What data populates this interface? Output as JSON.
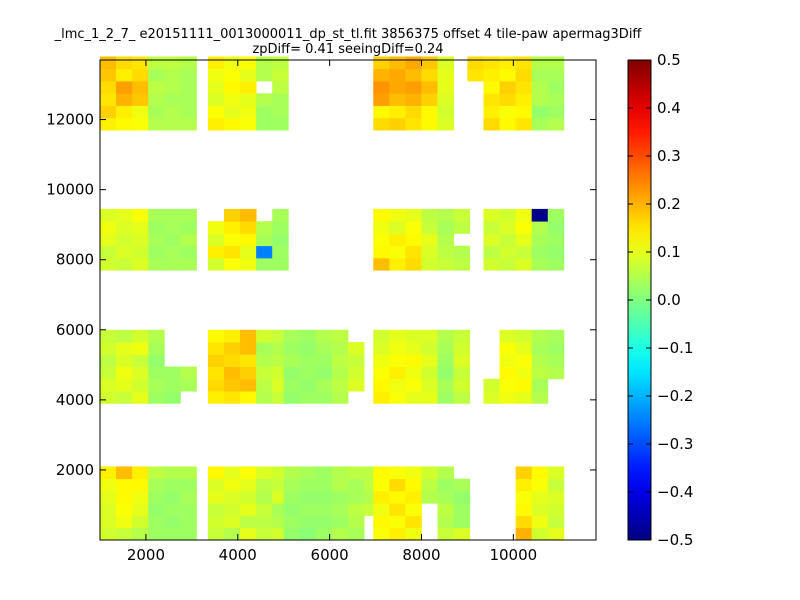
{
  "chart_data": {
    "type": "heatmap",
    "title": [
      "_lmc_1_2_7_ e20151111_0013000011_dp_st_tl.fit 3856375 offset 4 tile-paw apermag3Diff",
      "zpDiff= 0.41 seeingDiff=0.24"
    ],
    "xlim": [
      1000,
      11800
    ],
    "ylim": [
      0,
      13700
    ],
    "xticks": [
      "2000",
      "4000",
      "6000",
      "8000",
      "10000"
    ],
    "yticks": [
      "2000",
      "4000",
      "6000",
      "8000",
      "10000",
      "12000"
    ],
    "xtick_values": [
      2000,
      4000,
      6000,
      8000,
      10000
    ],
    "ytick_values": [
      2000,
      4000,
      6000,
      8000,
      10000,
      12000
    ],
    "colorbar": {
      "min": -0.5,
      "max": 0.5,
      "colormap": "jet",
      "ticks": [
        "0.5",
        "0.4",
        "0.3",
        "0.2",
        "0.1",
        "0.0",
        "−0.1",
        "−0.2",
        "−0.3",
        "−0.4",
        "−0.5"
      ],
      "tick_values": [
        0.5,
        0.4,
        0.3,
        0.2,
        0.1,
        0.0,
        -0.1,
        -0.2,
        -0.3,
        -0.4,
        -0.5
      ]
    },
    "cell_size": 350,
    "column_starts": [
      1000,
      3000,
      5000,
      6950,
      9000
    ],
    "row_bands": [
      {
        "ystart": 0,
        "rows": 6
      },
      {
        "ystart": 3900,
        "rows": 6
      },
      {
        "ystart": 7700,
        "rows": 6
      },
      {
        "ystart": 11700,
        "rows": 6
      }
    ],
    "blocks": [
      {
        "band": 0,
        "col": 0,
        "rows": [
          [
            0.08,
            0.07,
            0.05,
            0.03,
            0.03,
            0.03
          ],
          [
            0.09,
            0.11,
            0.08,
            0.03,
            0.02,
            0.03
          ],
          [
            0.09,
            0.12,
            0.1,
            0.02,
            0.03,
            0.03
          ],
          [
            0.1,
            0.13,
            0.11,
            0.03,
            0.02,
            0.04
          ],
          [
            0.11,
            0.13,
            0.13,
            0.04,
            0.03,
            0.03
          ],
          [
            0.14,
            0.19,
            0.14,
            0.06,
            0.05,
            0.05
          ]
        ]
      },
      {
        "band": 0,
        "col": 1,
        "rows": [
          [
            null,
            0.07,
            0.05,
            0.1,
            0.07,
            0.08
          ],
          [
            null,
            0.08,
            0.09,
            0.06,
            0.06,
            0.05
          ],
          [
            null,
            0.07,
            0.08,
            0.1,
            0.07,
            0.04
          ],
          [
            null,
            0.1,
            0.09,
            0.08,
            0.05,
            0.09
          ],
          [
            null,
            0.09,
            0.11,
            0.1,
            0.06,
            0.07
          ],
          [
            null,
            0.13,
            0.1,
            0.12,
            0.09,
            0.08
          ]
        ]
      },
      {
        "band": 0,
        "col": 2,
        "rows": [
          [
            0.02,
            0.01,
            0.03,
            0.05,
            0.04,
            null
          ],
          [
            0.03,
            0.02,
            0.02,
            0.03,
            0.05,
            null
          ],
          [
            0.02,
            0.03,
            0.03,
            0.04,
            0.06,
            0.07
          ],
          [
            0.03,
            0.02,
            0.02,
            0.03,
            0.04,
            0.05
          ],
          [
            0.04,
            0.03,
            0.03,
            0.05,
            0.04,
            0.06
          ],
          [
            0.05,
            0.04,
            0.03,
            0.05,
            0.06,
            0.06
          ]
        ]
      },
      {
        "band": 0,
        "col": 3,
        "rows": [
          [
            0.12,
            0.14,
            0.11,
            null,
            0.07,
            0.09
          ],
          [
            0.13,
            0.12,
            0.15,
            null,
            0.05,
            0.03
          ],
          [
            0.11,
            0.15,
            0.12,
            null,
            0.06,
            0.03
          ],
          [
            0.14,
            0.13,
            0.14,
            0.05,
            0.04,
            0.02
          ],
          [
            0.12,
            0.16,
            0.13,
            0.06,
            0.03,
            0.04
          ],
          [
            0.13,
            0.12,
            0.11,
            0.08,
            0.05,
            null
          ]
        ]
      },
      {
        "band": 0,
        "col": 4,
        "rows": [
          [
            null,
            null,
            null,
            0.2,
            0.08,
            0.1
          ],
          [
            null,
            null,
            null,
            0.16,
            0.11,
            0.07
          ],
          [
            null,
            null,
            null,
            0.13,
            0.09,
            0.08
          ],
          [
            null,
            null,
            null,
            0.12,
            0.1,
            0.09
          ],
          [
            null,
            null,
            null,
            0.14,
            0.12,
            0.07
          ],
          [
            null,
            null,
            null,
            0.17,
            0.13,
            0.09
          ]
        ]
      },
      {
        "band": 1,
        "col": 0,
        "rows": [
          [
            0.08,
            0.07,
            0.1,
            0.03,
            0.02,
            null
          ],
          [
            0.09,
            0.1,
            0.08,
            0.04,
            0.03,
            0.04
          ],
          [
            0.07,
            0.11,
            0.09,
            0.03,
            0.03,
            0.05
          ],
          [
            0.06,
            0.09,
            0.07,
            0.02,
            null,
            null
          ],
          [
            0.08,
            0.1,
            0.11,
            0.04,
            null,
            null
          ],
          [
            0.07,
            0.06,
            0.08,
            0.05,
            null,
            null
          ]
        ]
      },
      {
        "band": 1,
        "col": 1,
        "rows": [
          [
            null,
            0.14,
            0.15,
            0.13,
            0.05,
            0.07
          ],
          [
            null,
            0.16,
            0.18,
            0.19,
            0.06,
            0.09
          ],
          [
            null,
            0.15,
            0.19,
            0.17,
            0.07,
            0.08
          ],
          [
            null,
            0.17,
            0.16,
            0.15,
            0.05,
            0.06
          ],
          [
            null,
            0.15,
            0.17,
            0.19,
            0.04,
            0.05
          ],
          [
            null,
            0.13,
            0.14,
            0.19,
            0.08,
            0.07
          ]
        ]
      },
      {
        "band": 1,
        "col": 2,
        "rows": [
          [
            0.02,
            0.03,
            0.03,
            0.05,
            null,
            null
          ],
          [
            0.03,
            0.02,
            0.04,
            0.06,
            0.09,
            null
          ],
          [
            0.02,
            0.03,
            0.02,
            0.05,
            0.08,
            null
          ],
          [
            0.04,
            0.03,
            0.03,
            0.06,
            0.07,
            null
          ],
          [
            0.03,
            0.02,
            0.04,
            0.05,
            0.09,
            null
          ],
          [
            0.04,
            0.03,
            0.05,
            0.06,
            null,
            null
          ]
        ]
      },
      {
        "band": 1,
        "col": 3,
        "rows": [
          [
            0.14,
            0.12,
            0.1,
            0.1,
            0.03,
            0.06
          ],
          [
            0.13,
            0.11,
            0.12,
            0.09,
            0.04,
            0.08
          ],
          [
            0.12,
            0.14,
            0.11,
            0.08,
            0.02,
            0.07
          ],
          [
            0.11,
            0.12,
            0.13,
            0.1,
            0.03,
            0.09
          ],
          [
            0.09,
            0.11,
            0.1,
            0.08,
            0.04,
            0.08
          ],
          [
            0.08,
            0.1,
            0.09,
            0.09,
            0.05,
            0.07
          ]
        ]
      },
      {
        "band": 1,
        "col": 4,
        "rows": [
          [
            null,
            0.09,
            0.11,
            0.1,
            0.05,
            null
          ],
          [
            null,
            0.08,
            0.12,
            0.13,
            0.04,
            null
          ],
          [
            null,
            null,
            0.13,
            0.11,
            0.06,
            0.05
          ],
          [
            null,
            null,
            0.11,
            0.12,
            0.05,
            0.04
          ],
          [
            null,
            null,
            0.12,
            0.1,
            0.04,
            0.03
          ],
          [
            null,
            null,
            0.09,
            0.08,
            0.05,
            0.04
          ]
        ]
      },
      {
        "band": 2,
        "col": 0,
        "rows": [
          [
            0.08,
            0.07,
            0.09,
            0.04,
            0.04,
            0.04
          ],
          [
            0.07,
            0.09,
            0.08,
            0.03,
            0.04,
            0.03
          ],
          [
            0.1,
            0.08,
            0.09,
            0.04,
            0.03,
            0.05
          ],
          [
            0.11,
            0.09,
            0.1,
            0.03,
            0.04,
            0.03
          ],
          [
            0.09,
            0.1,
            0.12,
            0.04,
            0.04,
            0.04
          ],
          [
            null,
            null,
            null,
            null,
            null,
            null
          ]
        ]
      },
      {
        "band": 2,
        "col": 1,
        "rows": [
          [
            null,
            0.08,
            0.12,
            0.11,
            0.03,
            0.03
          ],
          [
            null,
            0.14,
            0.15,
            0.1,
            -0.25,
            0.03
          ],
          [
            null,
            0.09,
            0.12,
            0.13,
            0.04,
            0.02
          ],
          [
            null,
            0.11,
            0.14,
            0.16,
            0.05,
            0.03
          ],
          [
            null,
            null,
            0.17,
            0.19,
            null,
            0.04
          ],
          [
            null,
            null,
            null,
            null,
            null,
            null
          ]
        ]
      },
      {
        "band": 2,
        "col": 3,
        "rows": [
          [
            0.19,
            0.14,
            0.16,
            0.08,
            0.07,
            0.06
          ],
          [
            0.13,
            0.12,
            0.15,
            0.09,
            0.06,
            0.05
          ],
          [
            0.12,
            0.14,
            0.13,
            0.1,
            0.05,
            null
          ],
          [
            0.11,
            0.09,
            0.12,
            0.07,
            0.04,
            0.06
          ],
          [
            0.13,
            0.11,
            0.1,
            0.06,
            0.05,
            0.07
          ],
          [
            null,
            null,
            null,
            null,
            null,
            null
          ]
        ]
      },
      {
        "band": 2,
        "col": 4,
        "rows": [
          [
            null,
            0.08,
            0.07,
            0.09,
            0.04,
            0.03
          ],
          [
            null,
            0.06,
            0.08,
            0.07,
            0.03,
            0.02
          ],
          [
            null,
            0.09,
            0.07,
            0.1,
            0.04,
            0.03
          ],
          [
            null,
            0.07,
            0.09,
            0.12,
            0.05,
            0.02
          ],
          [
            null,
            0.09,
            0.08,
            0.11,
            -0.49,
            0.03
          ],
          [
            null,
            null,
            null,
            null,
            null,
            null
          ]
        ]
      },
      {
        "band": 3,
        "col": 0,
        "rows": [
          [
            0.14,
            0.13,
            0.12,
            0.05,
            0.05,
            0.05
          ],
          [
            0.17,
            0.14,
            0.11,
            0.04,
            0.05,
            0.04
          ],
          [
            0.15,
            0.2,
            0.18,
            0.05,
            0.04,
            0.04
          ],
          [
            0.16,
            0.22,
            0.19,
            0.06,
            0.05,
            0.04
          ],
          [
            0.18,
            0.14,
            0.16,
            0.04,
            0.05,
            0.04
          ],
          [
            0.19,
            0.16,
            0.15,
            0.06,
            0.06,
            0.05
          ]
        ]
      },
      {
        "band": 3,
        "col": 1,
        "rows": [
          [
            null,
            0.14,
            0.13,
            0.12,
            0.03,
            0.03
          ],
          [
            null,
            0.12,
            0.1,
            0.11,
            0.03,
            0.04
          ],
          [
            null,
            0.09,
            0.11,
            0.1,
            0.05,
            0.04
          ],
          [
            null,
            0.1,
            0.13,
            0.14,
            null,
            0.06
          ],
          [
            null,
            0.11,
            0.12,
            0.1,
            0.05,
            0.07
          ],
          [
            null,
            0.14,
            0.11,
            0.12,
            0.05,
            0.06
          ]
        ]
      },
      {
        "band": 3,
        "col": 3,
        "rows": [
          [
            0.16,
            0.17,
            0.15,
            0.13,
            0.09,
            null
          ],
          [
            0.13,
            0.14,
            0.16,
            0.13,
            0.08,
            null
          ],
          [
            0.22,
            0.19,
            0.2,
            0.17,
            0.09,
            null
          ],
          [
            0.23,
            0.21,
            0.22,
            0.19,
            0.1,
            null
          ],
          [
            0.2,
            0.21,
            0.19,
            0.16,
            0.1,
            null
          ],
          [
            0.17,
            0.19,
            0.21,
            0.18,
            0.09,
            null
          ]
        ]
      },
      {
        "band": 3,
        "col": 4,
        "rows": [
          [
            null,
            0.16,
            0.13,
            0.15,
            0.04,
            0.05
          ],
          [
            null,
            0.14,
            0.12,
            0.13,
            0.02,
            0.03
          ],
          [
            null,
            0.15,
            0.16,
            0.14,
            0.05,
            0.04
          ],
          [
            null,
            0.13,
            0.17,
            0.15,
            0.05,
            0.03
          ],
          [
            0.15,
            0.14,
            0.13,
            0.16,
            0.04,
            0.04
          ],
          [
            0.16,
            0.15,
            0.14,
            0.15,
            0.05,
            0.05
          ]
        ]
      }
    ]
  }
}
